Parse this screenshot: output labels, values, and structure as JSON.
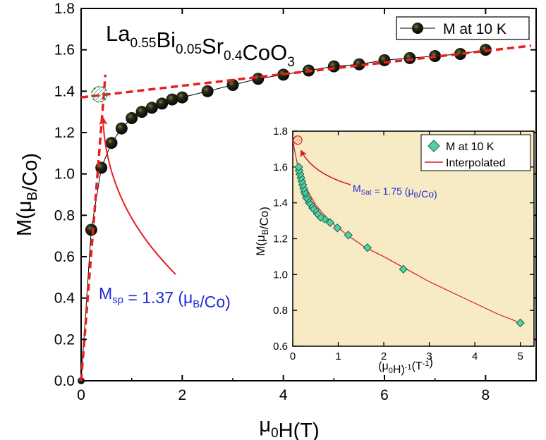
{
  "chart_data": [
    {
      "type": "scatter",
      "title": "La0.55Bi0.05Sr0.4CoO3",
      "title_parts": [
        {
          "text": "La",
          "sub": "0.55"
        },
        {
          "text": "Bi",
          "sub": "0.05"
        },
        {
          "text": "Sr",
          "sub": "0.4"
        },
        {
          "text": "CoO",
          "sub": "3"
        }
      ],
      "xlabel": "μ0H(T)",
      "xlabel_parts": [
        {
          "text": "μ"
        },
        {
          "text": "0",
          "baseline": "sub"
        },
        {
          "text": "H(T)"
        }
      ],
      "ylabel": "M(μB/Co)",
      "ylabel_parts": [
        {
          "text": "M(μ"
        },
        {
          "text": "B",
          "baseline": "sub"
        },
        {
          "text": "/Co)"
        }
      ],
      "xlim": [
        0,
        9.0
      ],
      "ylim": [
        0,
        1.8
      ],
      "xticks": [
        0,
        2,
        4,
        6,
        8
      ],
      "yticks": [
        0.0,
        0.2,
        0.4,
        0.6,
        0.8,
        1.0,
        1.2,
        1.4,
        1.6,
        1.8
      ],
      "legend": "top-right",
      "series": [
        {
          "name": "M at 10 K",
          "marker": "black-sphere",
          "x": [
            0.0,
            0.2,
            0.4,
            0.6,
            0.8,
            1.0,
            1.2,
            1.4,
            1.6,
            1.8,
            2.0,
            2.5,
            3.0,
            3.5,
            4.0,
            4.5,
            5.0,
            5.5,
            6.0,
            6.5,
            7.0,
            7.5,
            8.0
          ],
          "y": [
            0.0,
            0.73,
            1.03,
            1.15,
            1.22,
            1.27,
            1.3,
            1.32,
            1.34,
            1.36,
            1.37,
            1.4,
            1.43,
            1.46,
            1.48,
            1.5,
            1.52,
            1.53,
            1.55,
            1.56,
            1.57,
            1.58,
            1.6
          ]
        }
      ],
      "fit_lines": [
        {
          "name": "high-field linear fit",
          "x": [
            0,
            8.9
          ],
          "y": [
            1.37,
            1.62
          ]
        },
        {
          "name": "low-field linear fit",
          "x": [
            0,
            0.48
          ],
          "y": [
            0.0,
            1.48
          ]
        }
      ],
      "annotation": {
        "label_parts": [
          {
            "text": "M"
          },
          {
            "text": "sp",
            "baseline": "sub"
          },
          {
            "text": " = 1.37 (μ"
          },
          {
            "text": "B",
            "baseline": "sub"
          },
          {
            "text": "/Co)"
          }
        ],
        "label": "Msp = 1.37 (μB/Co)",
        "point": {
          "x": 0.36,
          "y": 1.385
        },
        "color": "#1e2bd8"
      },
      "colors": {
        "fit": "#e8201d",
        "marker": "#111111",
        "marker_highlight": "#5a5a2a",
        "crosshatch": "#2e8b57",
        "arrow": "#e8201d"
      }
    },
    {
      "type": "scatter",
      "title": "",
      "xlabel": "(μ0H)-1(T-1)",
      "xlabel_parts": [
        {
          "text": "(μ"
        },
        {
          "text": "0",
          "baseline": "sub"
        },
        {
          "text": "H)"
        },
        {
          "text": "-1",
          "baseline": "super"
        },
        {
          "text": "(T"
        },
        {
          "text": "-1",
          "baseline": "super"
        },
        {
          "text": ")"
        }
      ],
      "ylabel": "M(μB/Co)",
      "ylabel_parts": [
        {
          "text": "M(μ"
        },
        {
          "text": "B",
          "baseline": "sub"
        },
        {
          "text": "/Co)"
        }
      ],
      "xlim": [
        0,
        5.3
      ],
      "ylim": [
        0.6,
        1.8
      ],
      "xticks": [
        0,
        1,
        2,
        3,
        4,
        5
      ],
      "yticks": [
        0.6,
        0.8,
        1.0,
        1.2,
        1.4,
        1.6,
        1.8
      ],
      "legend": "top-right",
      "background": "#f7ebc5",
      "series": [
        {
          "name": "M at 10 K",
          "marker": "diamond",
          "x": [
            5.0,
            2.43,
            1.64,
            1.22,
            0.98,
            0.82,
            0.7,
            0.61,
            0.54,
            0.49,
            0.44,
            0.4,
            0.36,
            0.33,
            0.3,
            0.28,
            0.26,
            0.24,
            0.22,
            0.2,
            0.18,
            0.16,
            0.14,
            0.13
          ],
          "y": [
            0.73,
            1.03,
            1.15,
            1.22,
            1.26,
            1.29,
            1.31,
            1.32,
            1.34,
            1.36,
            1.37,
            1.39,
            1.4,
            1.42,
            1.43,
            1.45,
            1.46,
            1.48,
            1.5,
            1.52,
            1.54,
            1.56,
            1.58,
            1.6
          ]
        },
        {
          "name": "Interpolated",
          "line": true,
          "x": [
            0.0,
            0.05,
            0.1,
            0.2,
            0.3,
            0.5,
            0.8,
            1.2,
            1.6,
            2.0,
            2.5,
            3.0,
            3.5,
            4.0,
            4.5,
            5.0
          ],
          "y": [
            1.75,
            1.68,
            1.62,
            1.54,
            1.48,
            1.39,
            1.3,
            1.22,
            1.15,
            1.1,
            1.03,
            0.96,
            0.9,
            0.84,
            0.78,
            0.73
          ]
        }
      ],
      "annotation": {
        "label_parts": [
          {
            "text": "M"
          },
          {
            "text": "Sat",
            "baseline": "sub"
          },
          {
            "text": " = 1.75 (μ"
          },
          {
            "text": "B",
            "baseline": "sub"
          },
          {
            "text": "/Co)"
          }
        ],
        "label": "MSat = 1.75 (μB/Co)",
        "point": {
          "x": 0.0,
          "y": 1.75
        },
        "color": "#1e2bd8"
      },
      "colors": {
        "diamond_fill": "#4fd1a5",
        "diamond_stroke": "#1b5e45",
        "line": "#d81b1b",
        "arrow": "#d81b1b"
      }
    }
  ]
}
